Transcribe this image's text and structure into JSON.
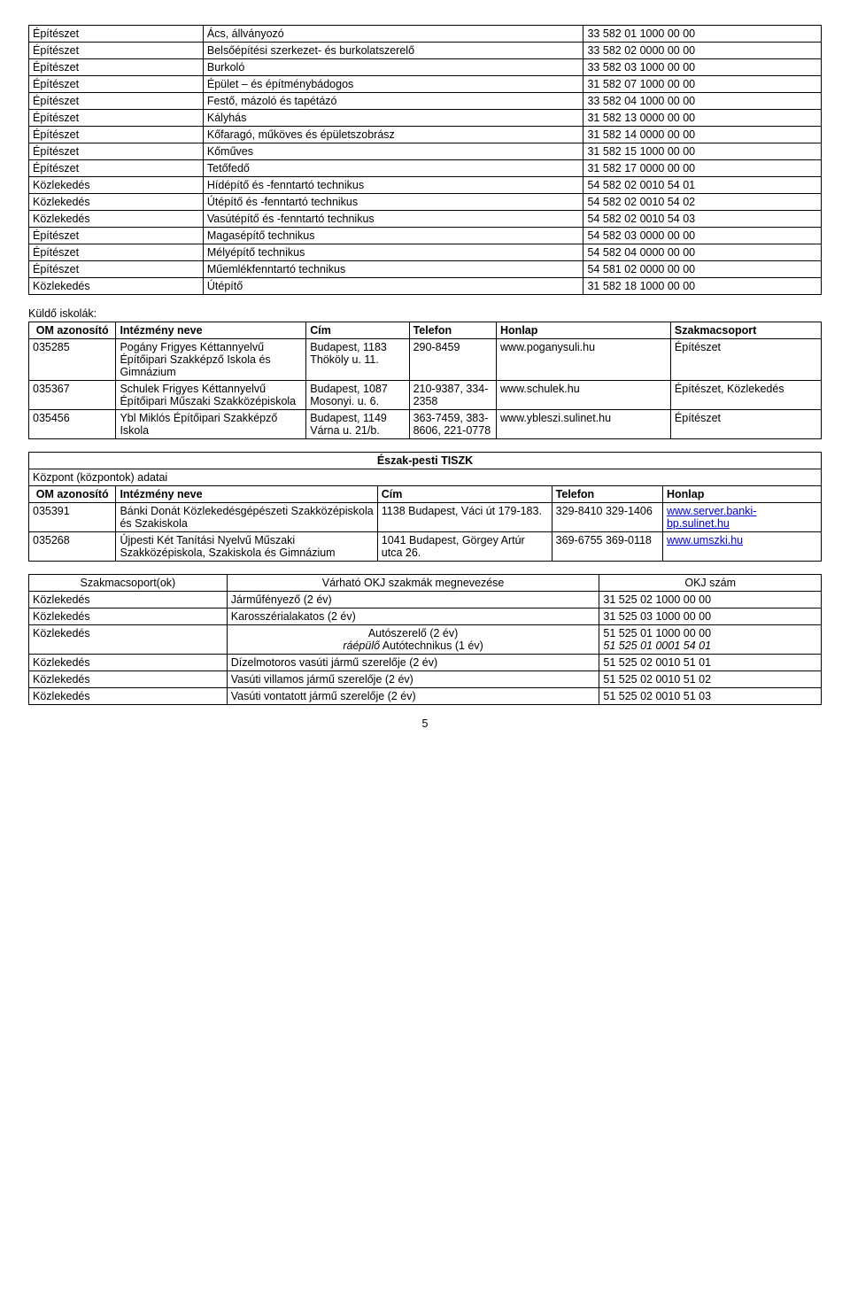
{
  "table1": {
    "rows": [
      [
        "Építészet",
        "Ács, állványozó",
        "33 582  01 1000 00 00"
      ],
      [
        "Építészet",
        "Belsőépítési szerkezet- és burkolatszerelő",
        "33 582 02  0000 00 00"
      ],
      [
        "Építészet",
        "Burkoló",
        "33 582 03  1000 00 00"
      ],
      [
        "Építészet",
        "Épület – és építménybádogos",
        "31 582 07  1000 00 00"
      ],
      [
        "Építészet",
        "Festő, mázoló és tapétázó",
        "33 582 04  1000 00 00"
      ],
      [
        "Építészet",
        "Kályhás",
        "31 582 13  0000 00 00"
      ],
      [
        "Építészet",
        "Kőfaragó, műköves és épületszobrász",
        "31 582 14  0000 00 00"
      ],
      [
        "Építészet",
        "Kőműves",
        "31 582 15  1000 00 00"
      ],
      [
        "Építészet",
        "Tetőfedő",
        "31 582 17  0000 00 00"
      ],
      [
        "Közlekedés",
        "Hídépítő és -fenntartó technikus",
        "54 582 02 0010 54 01"
      ],
      [
        "Közlekedés",
        "Útépítő és -fenntartó technikus",
        "54 582 02 0010 54 02"
      ],
      [
        "Közlekedés",
        "Vasútépítő és -fenntartó technikus",
        "54 582 02 0010 54 03"
      ],
      [
        "Építészet",
        "Magasépítő technikus",
        "54 582 03 0000 00 00"
      ],
      [
        "Építészet",
        "Mélyépítő technikus",
        "54 582 04 0000  00 00"
      ],
      [
        "Építészet",
        "Műemlékfenntartó technikus",
        "54 581 02 0000 00 00"
      ],
      [
        "Közlekedés",
        "Útépítő",
        "31 582 18 1000 00 00"
      ]
    ],
    "col_widths": [
      "22%",
      "48%",
      "30%"
    ]
  },
  "section2_label": "Küldő iskolák:",
  "table2": {
    "headers": [
      "OM azonosító",
      "Intézmény neve",
      "Cím",
      "Telefon",
      "Honlap",
      "Szakmacsoport"
    ],
    "rows": [
      [
        "035285",
        "Pogány Frigyes Kéttannyelvű Építőipari Szakképző Iskola és Gimnázium",
        "Budapest, 1183 Thököly u. 11.",
        "290-8459",
        "www.poganysuli.hu",
        "Építészet"
      ],
      [
        "035367",
        "Schulek Frigyes Kéttannyelvű Építőipari Műszaki Szakközépiskola",
        "Budapest, 1087 Mosonyi. u. 6.",
        "210-9387, 334-2358",
        "www.schulek.hu",
        "Építészet, Közlekedés"
      ],
      [
        "035456",
        "Ybl Miklós Építőipari Szakképző Iskola",
        "Budapest, 1149 Várna u. 21/b.",
        "363-7459, 383-8606, 221-0778",
        "www.ybleszi.sulinet.hu",
        "Építészet"
      ]
    ],
    "col_widths": [
      "11%",
      "24%",
      "13%",
      "11%",
      "22%",
      "19%"
    ]
  },
  "section3_label": "Központ (központok) adatai",
  "tiszk_title": "Észak-pesti TISZK",
  "table3": {
    "headers": [
      "OM azonosító",
      "Intézmény neve",
      "Cím",
      "Telefon",
      "Honlap"
    ],
    "rows": [
      {
        "c": [
          "035391",
          "Bánki Donát Közlekedésgépészeti Szakközépiskola és Szakiskola",
          "1138 Budapest, Váci út 179-183.",
          "329-8410 329-1406"
        ],
        "link": "www.server.banki-bp.sulinet.hu"
      },
      {
        "c": [
          "035268",
          "Újpesti Két Tanítási Nyelvű Műszaki Szakközépiskola, Szakiskola és Gimnázium",
          "1041 Budapest, Görgey Artúr utca 26.",
          "369-6755 369-0118"
        ],
        "link": "www.umszki.hu"
      }
    ],
    "col_widths": [
      "11%",
      "33%",
      "22%",
      "14%",
      "20%"
    ]
  },
  "table4": {
    "headers": [
      "Szakmacsoport(ok)",
      "Várható OKJ szakmák megnevezése",
      "OKJ szám"
    ],
    "rows": [
      {
        "c": [
          "Közlekedés",
          "Járműfényező (2 év)",
          "31 525 02 1000 00 00"
        ]
      },
      {
        "c": [
          "Közlekedés",
          "Karosszérialakatos (2 év)",
          "31 525 03 1000 00 00"
        ]
      },
      {
        "c": [
          "Közlekedés"
        ],
        "multi": [
          {
            "t": "Autószerelő (2 év)",
            "n": "51 525 01 1000 00 00"
          },
          {
            "t": "ráépülő Autótechnikus (1 év)",
            "n": "51 525 01 0001 54 01",
            "italic_prefix": "ráépülő",
            "rest": " Autótechnikus (1 év)"
          }
        ]
      },
      {
        "c": [
          "Közlekedés",
          "Dízelmotoros vasúti jármű szerelője (2 év)",
          "51 525 02 0010 51 01"
        ]
      },
      {
        "c": [
          "Közlekedés",
          "Vasúti villamos jármű szerelője (2 év)",
          "51 525 02 0010 51 02"
        ]
      },
      {
        "c": [
          "Közlekedés",
          "Vasúti vontatott jármű szerelője (2 év)",
          "51 525 02 0010 51 03"
        ]
      }
    ],
    "col_widths": [
      "25%",
      "47%",
      "28%"
    ]
  },
  "page_number": "5"
}
